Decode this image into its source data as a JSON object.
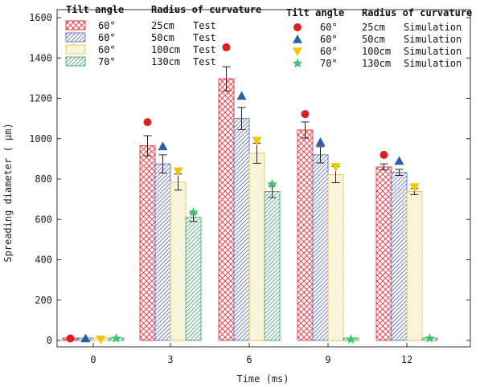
{
  "chart_data": {
    "type": "bar",
    "title": "",
    "xlabel": "Time (ms)",
    "ylabel": "Spreading diameter ( μm)",
    "ylim": [
      0,
      1600
    ],
    "yticks": [
      0,
      200,
      400,
      600,
      800,
      1000,
      1200,
      1400,
      1600
    ],
    "categories": [
      "0",
      "3",
      "6",
      "9",
      "12"
    ],
    "series": [
      {
        "name": "60° 25cm Test",
        "tilt": "60°",
        "radius": "25cm",
        "kind": "Test",
        "pattern": "crosshatch",
        "color": "#e8323c",
        "values": [
          0,
          965,
          1297,
          1043,
          860
        ],
        "errors": [
          0,
          50,
          60,
          40,
          15
        ]
      },
      {
        "name": "60° 50cm Test",
        "tilt": "60°",
        "radius": "50cm",
        "kind": "Test",
        "pattern": "diagonal",
        "color": "#5a6fb5",
        "values": [
          0,
          875,
          1100,
          920,
          833
        ],
        "errors": [
          0,
          45,
          55,
          40,
          15
        ]
      },
      {
        "name": "60° 100cm Test",
        "tilt": "60°",
        "radius": "100cm",
        "kind": "Test",
        "pattern": "dots",
        "color": "#e6c44a",
        "values": [
          0,
          785,
          928,
          822,
          738
        ],
        "errors": [
          0,
          40,
          50,
          40,
          15
        ]
      },
      {
        "name": "70° 130cm Test",
        "tilt": "70°",
        "radius": "130cm",
        "kind": "Test",
        "pattern": "diagonal",
        "color": "#3ea86b",
        "values": [
          0,
          610,
          738,
          0,
          0
        ],
        "errors": [
          0,
          20,
          30,
          0,
          0
        ]
      }
    ],
    "simulation": [
      {
        "name": "60° 25cm Simulation",
        "tilt": "60°",
        "radius": "25cm",
        "kind": "Simulation",
        "marker": "circle",
        "color": "#e01e1e",
        "values": [
          10,
          1082,
          1453,
          1122,
          920
        ]
      },
      {
        "name": "60° 50cm Simulation",
        "tilt": "60°",
        "radius": "50cm",
        "kind": "Simulation",
        "marker": "triangle",
        "color": "#2b5fa8",
        "values": [
          10,
          962,
          1212,
          983,
          890
        ]
      },
      {
        "name": "60° 100cm Simulation",
        "tilt": "60°",
        "radius": "100cm",
        "kind": "Simulation",
        "marker": "triangle-down",
        "color": "#f5c400",
        "values": [
          5,
          838,
          990,
          860,
          760
        ]
      },
      {
        "name": "70° 130cm Simulation",
        "tilt": "70°",
        "radius": "130cm",
        "kind": "Simulation",
        "marker": "star",
        "color": "#3ac66a",
        "values": [
          10,
          635,
          775,
          5,
          10
        ]
      }
    ],
    "legend_test": {
      "header_tilt": "Tilt angle",
      "header_radius": "Radius of curvature",
      "placement": "top-left"
    },
    "legend_sim": {
      "header_tilt": "Tilt angle",
      "header_radius": "Radius of curvature",
      "placement": "top-right"
    },
    "grid": false
  }
}
